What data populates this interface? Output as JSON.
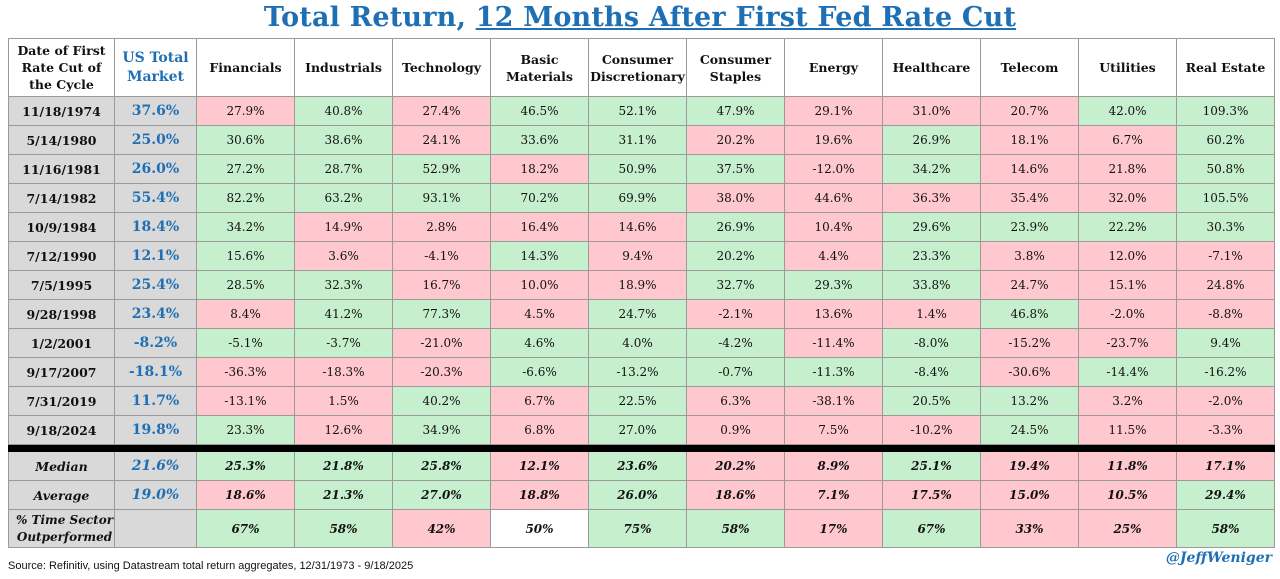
{
  "title_part1": "Total Return, ",
  "title_part2": "12 Months After First Fed Rate Cut",
  "source": "Source: Refinitiv, using Datastream total return aggregates, 12/31/1973 - 9/18/2025",
  "handle": "@JeffWeniger",
  "colors": {
    "title": "#1f6fb5",
    "positive": "#c6efce",
    "negative": "#ffc7ce",
    "label_bg": "#d9d9d9"
  },
  "chart_data": {
    "type": "table",
    "title": "Total Return, 12 Months After First Fed Rate Cut",
    "row_header_label": "Date of First Rate Cut of the Cycle",
    "market_label": "US Total Market",
    "sectors": [
      "Financials",
      "Industrials",
      "Technology",
      "Basic Materials",
      "Consumer Discretionary",
      "Consumer Staples",
      "Energy",
      "Healthcare",
      "Telecom",
      "Utilities",
      "Real Estate"
    ],
    "rows": [
      {
        "date": "11/18/1974",
        "market": "37.6%",
        "values": [
          "27.9%",
          "40.8%",
          "27.4%",
          "46.5%",
          "52.1%",
          "47.9%",
          "29.1%",
          "31.0%",
          "20.7%",
          "42.0%",
          "109.3%"
        ]
      },
      {
        "date": "5/14/1980",
        "market": "25.0%",
        "values": [
          "30.6%",
          "38.6%",
          "24.1%",
          "33.6%",
          "31.1%",
          "20.2%",
          "19.6%",
          "26.9%",
          "18.1%",
          "6.7%",
          "60.2%"
        ]
      },
      {
        "date": "11/16/1981",
        "market": "26.0%",
        "values": [
          "27.2%",
          "28.7%",
          "52.9%",
          "18.2%",
          "50.9%",
          "37.5%",
          "-12.0%",
          "34.2%",
          "14.6%",
          "21.8%",
          "50.8%"
        ]
      },
      {
        "date": "7/14/1982",
        "market": "55.4%",
        "values": [
          "82.2%",
          "63.2%",
          "93.1%",
          "70.2%",
          "69.9%",
          "38.0%",
          "44.6%",
          "36.3%",
          "35.4%",
          "32.0%",
          "105.5%"
        ]
      },
      {
        "date": "10/9/1984",
        "market": "18.4%",
        "values": [
          "34.2%",
          "14.9%",
          "2.8%",
          "16.4%",
          "14.6%",
          "26.9%",
          "10.4%",
          "29.6%",
          "23.9%",
          "22.2%",
          "30.3%"
        ]
      },
      {
        "date": "7/12/1990",
        "market": "12.1%",
        "values": [
          "15.6%",
          "3.6%",
          "-4.1%",
          "14.3%",
          "9.4%",
          "20.2%",
          "4.4%",
          "23.3%",
          "3.8%",
          "12.0%",
          "-7.1%"
        ]
      },
      {
        "date": "7/5/1995",
        "market": "25.4%",
        "values": [
          "28.5%",
          "32.3%",
          "16.7%",
          "10.0%",
          "18.9%",
          "32.7%",
          "29.3%",
          "33.8%",
          "24.7%",
          "15.1%",
          "24.8%"
        ]
      },
      {
        "date": "9/28/1998",
        "market": "23.4%",
        "values": [
          "8.4%",
          "41.2%",
          "77.3%",
          "4.5%",
          "24.7%",
          "-2.1%",
          "13.6%",
          "1.4%",
          "46.8%",
          "-2.0%",
          "-8.8%"
        ]
      },
      {
        "date": "1/2/2001",
        "market": "-8.2%",
        "values": [
          "-5.1%",
          "-3.7%",
          "-21.0%",
          "4.6%",
          "4.0%",
          "-4.2%",
          "-11.4%",
          "-8.0%",
          "-15.2%",
          "-23.7%",
          "9.4%"
        ]
      },
      {
        "date": "9/17/2007",
        "market": "-18.1%",
        "values": [
          "-36.3%",
          "-18.3%",
          "-20.3%",
          "-6.6%",
          "-13.2%",
          "-0.7%",
          "-11.3%",
          "-8.4%",
          "-30.6%",
          "-14.4%",
          "-16.2%"
        ]
      },
      {
        "date": "7/31/2019",
        "market": "11.7%",
        "values": [
          "-13.1%",
          "1.5%",
          "40.2%",
          "6.7%",
          "22.5%",
          "6.3%",
          "-38.1%",
          "20.5%",
          "13.2%",
          "3.2%",
          "-2.0%"
        ]
      },
      {
        "date": "9/18/2024",
        "market": "19.8%",
        "values": [
          "23.3%",
          "12.6%",
          "34.9%",
          "6.8%",
          "27.0%",
          "0.9%",
          "7.5%",
          "-10.2%",
          "24.5%",
          "11.5%",
          "-3.3%"
        ]
      }
    ],
    "summary": [
      {
        "label": "Median",
        "market": "21.6%",
        "values": [
          "25.3%",
          "21.8%",
          "25.8%",
          "12.1%",
          "23.6%",
          "20.2%",
          "8.9%",
          "25.1%",
          "19.4%",
          "11.8%",
          "17.1%"
        ]
      },
      {
        "label": "Average",
        "market": "19.0%",
        "values": [
          "18.6%",
          "21.3%",
          "27.0%",
          "18.8%",
          "26.0%",
          "18.6%",
          "7.1%",
          "17.5%",
          "15.0%",
          "10.5%",
          "29.4%"
        ]
      }
    ],
    "outperformed": {
      "label": "% Time Sector Outperformed",
      "values": [
        "67%",
        "58%",
        "42%",
        "50%",
        "75%",
        "58%",
        "17%",
        "67%",
        "33%",
        "25%",
        "58%"
      ]
    }
  }
}
